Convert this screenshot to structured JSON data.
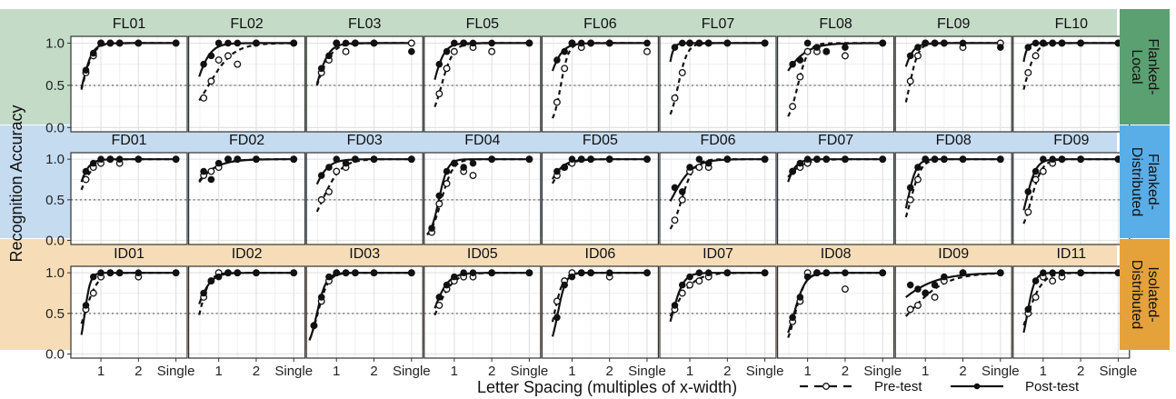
{
  "chart_data": {
    "type": "line",
    "xlabel": "Letter Spacing (multiples of x-width)",
    "ylabel": "Recognition Accuracy",
    "x_tick_labels": [
      "1",
      "2",
      "Single"
    ],
    "x_tick_values": [
      1,
      2,
      3
    ],
    "xlim": [
      0.2,
      3.3
    ],
    "y_tick_labels": [
      "0.0",
      "0.5",
      "1.0"
    ],
    "y_tick_values": [
      0,
      0.5,
      1
    ],
    "ylim": [
      -0.05,
      1.08
    ],
    "reference_line_y": 0.5,
    "grid": true,
    "legend": {
      "position": "bottom-right",
      "entries": [
        {
          "label": "Pre-test",
          "style": "dashed",
          "marker": "open-circle"
        },
        {
          "label": "Post-test",
          "style": "solid",
          "marker": "filled-circle"
        }
      ]
    },
    "colors": {
      "row_backgrounds": [
        "#c4dbc8",
        "#c5dbf0",
        "#f6ddb8"
      ],
      "strip_backgrounds": [
        "#5ba071",
        "#5aaee8",
        "#e5a23a"
      ],
      "panel_background": "#ffffff",
      "grid": "#e3e3e3"
    },
    "panel_x": [
      0.4,
      0.6,
      0.8,
      1.0,
      1.25,
      1.5,
      2.0,
      3.0
    ],
    "rows": [
      {
        "label": "Flanked-Local",
        "label_lines": [
          "Flanked-",
          "Local"
        ],
        "panels": [
          {
            "title": "FL01",
            "pre": [
              null,
              0.65,
              0.85,
              1.0,
              1.0,
              1.0,
              1.0,
              1.0
            ],
            "post": [
              null,
              0.68,
              0.88,
              1.0,
              1.0,
              1.0,
              1.0,
              1.0
            ]
          },
          {
            "title": "FL02",
            "pre": [
              null,
              0.35,
              0.55,
              0.8,
              0.85,
              0.75,
              1.0,
              1.0
            ],
            "post": [
              null,
              0.75,
              0.85,
              1.0,
              1.0,
              1.0,
              1.0,
              1.0
            ]
          },
          {
            "title": "FL03",
            "pre": [
              null,
              0.65,
              0.8,
              1.0,
              0.9,
              1.0,
              1.0,
              1.0
            ],
            "post": [
              null,
              0.7,
              0.85,
              1.0,
              1.0,
              1.0,
              1.0,
              0.9
            ]
          },
          {
            "title": "FL05",
            "pre": [
              null,
              0.4,
              0.7,
              0.9,
              1.0,
              0.95,
              0.9,
              1.0
            ],
            "post": [
              null,
              0.75,
              0.9,
              1.0,
              1.0,
              1.0,
              1.0,
              1.0
            ]
          },
          {
            "title": "FL06",
            "pre": [
              null,
              0.3,
              0.7,
              1.0,
              0.95,
              1.0,
              1.0,
              0.9
            ],
            "post": [
              null,
              0.8,
              0.9,
              1.0,
              1.0,
              1.0,
              1.0,
              1.0
            ]
          },
          {
            "title": "FL07",
            "pre": [
              null,
              0.35,
              0.65,
              1.0,
              1.0,
              1.0,
              1.0,
              1.0
            ],
            "post": [
              null,
              0.95,
              1.0,
              1.0,
              1.0,
              1.0,
              1.0,
              1.0
            ]
          },
          {
            "title": "FL08",
            "pre": [
              null,
              0.25,
              0.6,
              0.9,
              0.9,
              0.9,
              0.85,
              1.0
            ],
            "post": [
              null,
              0.75,
              0.8,
              1.0,
              0.95,
              0.9,
              0.95,
              1.0
            ]
          },
          {
            "title": "FL09",
            "pre": [
              null,
              0.55,
              0.85,
              1.0,
              1.0,
              1.0,
              0.95,
              1.0
            ],
            "post": [
              null,
              0.85,
              0.95,
              1.0,
              1.0,
              1.0,
              1.0,
              0.95
            ]
          },
          {
            "title": "FL10",
            "pre": [
              null,
              0.65,
              0.85,
              1.0,
              1.0,
              1.0,
              1.0,
              1.0
            ],
            "post": [
              null,
              0.95,
              1.0,
              1.0,
              1.0,
              1.0,
              1.0,
              1.0
            ]
          }
        ]
      },
      {
        "label": "Flanked-Distributed",
        "label_lines": [
          "Flanked-",
          "Distributed"
        ],
        "panels": [
          {
            "title": "FD01",
            "pre": [
              null,
              0.75,
              0.9,
              0.95,
              1.0,
              0.95,
              1.0,
              1.0
            ],
            "post": [
              null,
              0.85,
              0.95,
              1.0,
              1.0,
              1.0,
              1.0,
              1.0
            ]
          },
          {
            "title": "FD02",
            "pre": [
              null,
              0.8,
              0.85,
              0.9,
              1.0,
              1.0,
              1.0,
              1.0
            ],
            "post": [
              null,
              0.85,
              0.75,
              0.95,
              1.0,
              1.0,
              1.0,
              1.0
            ]
          },
          {
            "title": "FD03",
            "pre": [
              null,
              0.5,
              0.6,
              0.85,
              0.9,
              1.0,
              1.0,
              1.0
            ],
            "post": [
              null,
              0.8,
              0.9,
              1.0,
              0.95,
              1.0,
              1.0,
              1.0
            ]
          },
          {
            "title": "FD04",
            "pre": [
              0.1,
              0.45,
              0.7,
              0.95,
              0.85,
              0.8,
              1.0,
              1.0
            ],
            "post": [
              0.15,
              0.55,
              0.85,
              0.95,
              0.9,
              0.95,
              1.0,
              1.0
            ]
          },
          {
            "title": "FD05",
            "pre": [
              null,
              0.8,
              0.9,
              0.95,
              1.0,
              1.0,
              1.0,
              1.0
            ],
            "post": [
              null,
              0.85,
              0.9,
              1.0,
              1.0,
              1.0,
              1.0,
              1.0
            ]
          },
          {
            "title": "FD06",
            "pre": [
              null,
              0.25,
              0.5,
              0.85,
              0.9,
              0.9,
              1.0,
              1.0
            ],
            "post": [
              null,
              0.65,
              0.6,
              0.9,
              1.0,
              0.95,
              1.0,
              1.0
            ]
          },
          {
            "title": "FD07",
            "pre": [
              null,
              0.85,
              0.9,
              0.95,
              1.0,
              1.0,
              1.0,
              1.0
            ],
            "post": [
              null,
              0.85,
              0.95,
              1.0,
              1.0,
              1.0,
              1.0,
              1.0
            ]
          },
          {
            "title": "FD08",
            "pre": [
              null,
              0.5,
              0.75,
              1.0,
              1.0,
              1.0,
              1.0,
              1.0
            ],
            "post": [
              null,
              0.65,
              0.9,
              1.0,
              1.0,
              1.0,
              1.0,
              1.0
            ]
          },
          {
            "title": "FD09",
            "pre": [
              null,
              0.35,
              0.75,
              0.85,
              0.95,
              1.0,
              1.0,
              1.0
            ],
            "post": [
              null,
              0.6,
              0.85,
              1.0,
              1.0,
              1.0,
              1.0,
              1.0
            ]
          }
        ]
      },
      {
        "label": "Isolated-Distributed",
        "label_lines": [
          "Isolated-",
          "Distributed"
        ],
        "panels": [
          {
            "title": "ID01",
            "pre": [
              null,
              0.55,
              0.75,
              0.95,
              1.0,
              1.0,
              0.95,
              1.0
            ],
            "post": [
              null,
              0.6,
              0.95,
              1.0,
              1.0,
              1.0,
              1.0,
              1.0
            ]
          },
          {
            "title": "ID02",
            "pre": [
              null,
              0.7,
              0.9,
              1.0,
              1.0,
              1.0,
              1.0,
              1.0
            ],
            "post": [
              null,
              0.75,
              0.9,
              0.95,
              1.0,
              1.0,
              1.0,
              1.0
            ]
          },
          {
            "title": "ID03",
            "pre": [
              0.35,
              0.65,
              0.9,
              1.0,
              1.0,
              1.0,
              1.0,
              1.0
            ],
            "post": [
              0.35,
              0.7,
              0.95,
              1.0,
              1.0,
              1.0,
              1.0,
              1.0
            ]
          },
          {
            "title": "ID05",
            "pre": [
              null,
              0.6,
              0.8,
              0.9,
              0.95,
              0.95,
              1.0,
              1.0
            ],
            "post": [
              null,
              0.7,
              0.85,
              0.95,
              1.0,
              1.0,
              1.0,
              1.0
            ]
          },
          {
            "title": "ID06",
            "pre": [
              null,
              0.65,
              0.9,
              1.0,
              1.0,
              1.0,
              0.95,
              1.0
            ],
            "post": [
              null,
              0.45,
              0.85,
              0.95,
              1.0,
              1.0,
              1.0,
              1.0
            ]
          },
          {
            "title": "ID07",
            "pre": [
              null,
              0.55,
              0.75,
              0.85,
              0.9,
              0.95,
              1.0,
              1.0
            ],
            "post": [
              null,
              0.6,
              0.85,
              0.95,
              1.0,
              1.0,
              1.0,
              1.0
            ]
          },
          {
            "title": "ID08",
            "pre": [
              null,
              0.4,
              0.65,
              1.0,
              1.0,
              1.0,
              0.8,
              1.0
            ],
            "post": [
              null,
              0.45,
              0.7,
              0.95,
              1.0,
              1.0,
              1.0,
              1.0
            ]
          },
          {
            "title": "ID09",
            "pre": [
              null,
              0.55,
              0.6,
              0.75,
              0.7,
              0.9,
              1.0,
              1.0
            ],
            "post": [
              null,
              0.85,
              0.8,
              0.75,
              0.85,
              0.95,
              1.0,
              1.0
            ]
          },
          {
            "title": "ID11",
            "pre": [
              null,
              0.5,
              0.7,
              0.95,
              0.9,
              0.95,
              1.0,
              1.0
            ],
            "post": [
              null,
              0.55,
              0.9,
              1.0,
              1.0,
              1.0,
              1.0,
              1.0
            ]
          }
        ]
      }
    ]
  }
}
